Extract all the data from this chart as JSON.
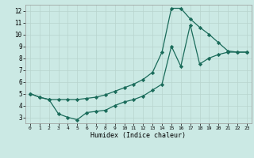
{
  "title": "",
  "xlabel": "Humidex (Indice chaleur)",
  "xlim": [
    -0.5,
    23.5
  ],
  "ylim": [
    2.5,
    12.5
  ],
  "xticks": [
    0,
    1,
    2,
    3,
    4,
    5,
    6,
    7,
    8,
    9,
    10,
    11,
    12,
    13,
    14,
    15,
    16,
    17,
    18,
    19,
    20,
    21,
    22,
    23
  ],
  "yticks": [
    3,
    4,
    5,
    6,
    7,
    8,
    9,
    10,
    11,
    12
  ],
  "background_color": "#cbe9e4",
  "grid_color": "#b8d4ce",
  "line_color": "#1a6b5a",
  "line1_x": [
    0,
    1,
    2,
    3,
    4,
    5,
    6,
    7,
    8,
    9,
    10,
    11,
    12,
    13,
    14,
    15,
    16,
    17,
    18,
    19,
    20,
    21,
    22,
    23
  ],
  "line1_y": [
    5.0,
    4.7,
    4.5,
    4.5,
    4.5,
    4.5,
    4.6,
    4.7,
    4.9,
    5.2,
    5.5,
    5.8,
    6.2,
    6.8,
    8.5,
    12.2,
    12.2,
    11.3,
    10.6,
    10.0,
    9.3,
    8.6,
    8.5,
    8.5
  ],
  "line2_x": [
    0,
    1,
    2,
    3,
    4,
    5,
    6,
    7,
    8,
    9,
    10,
    11,
    12,
    13,
    14,
    15,
    16,
    17,
    18,
    19,
    20,
    21,
    22,
    23
  ],
  "line2_y": [
    5.0,
    4.7,
    4.5,
    3.3,
    3.0,
    2.8,
    3.4,
    3.5,
    3.6,
    4.0,
    4.3,
    4.5,
    4.8,
    5.3,
    5.8,
    9.0,
    7.3,
    10.8,
    7.5,
    8.0,
    8.3,
    8.5,
    8.5,
    8.5
  ]
}
